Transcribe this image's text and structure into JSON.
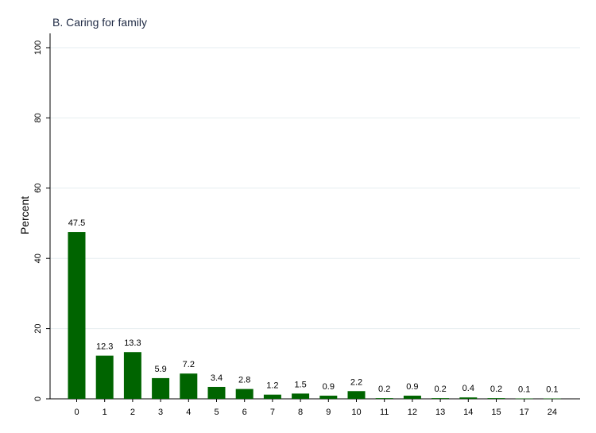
{
  "chart_data": {
    "type": "bar",
    "title": "B. Caring for family",
    "xlabel": "",
    "ylabel": "Percent",
    "ylim": [
      0,
      100
    ],
    "yticks": [
      0,
      20,
      40,
      60,
      80,
      100
    ],
    "grid": true,
    "categories": [
      "0",
      "1",
      "2",
      "3",
      "4",
      "5",
      "6",
      "7",
      "8",
      "9",
      "10",
      "11",
      "12",
      "13",
      "14",
      "15",
      "17",
      "24"
    ],
    "values": [
      47.5,
      12.3,
      13.3,
      5.9,
      7.2,
      3.4,
      2.8,
      1.2,
      1.5,
      0.9,
      2.2,
      0.2,
      0.9,
      0.2,
      0.4,
      0.2,
      0.1,
      0.1
    ],
    "value_labels": [
      "47.5",
      "12.3",
      "13.3",
      "5.9",
      "7.2",
      "3.4",
      "2.8",
      "1.2",
      "1.5",
      "0.9",
      "2.2",
      "0.2",
      "0.9",
      "0.2",
      "0.4",
      "0.2",
      "0.1",
      "0.1"
    ],
    "colors": {
      "bar": "#006400",
      "grid": "#e6eef0",
      "axis": "#000000",
      "title": "#1f2a44"
    }
  }
}
